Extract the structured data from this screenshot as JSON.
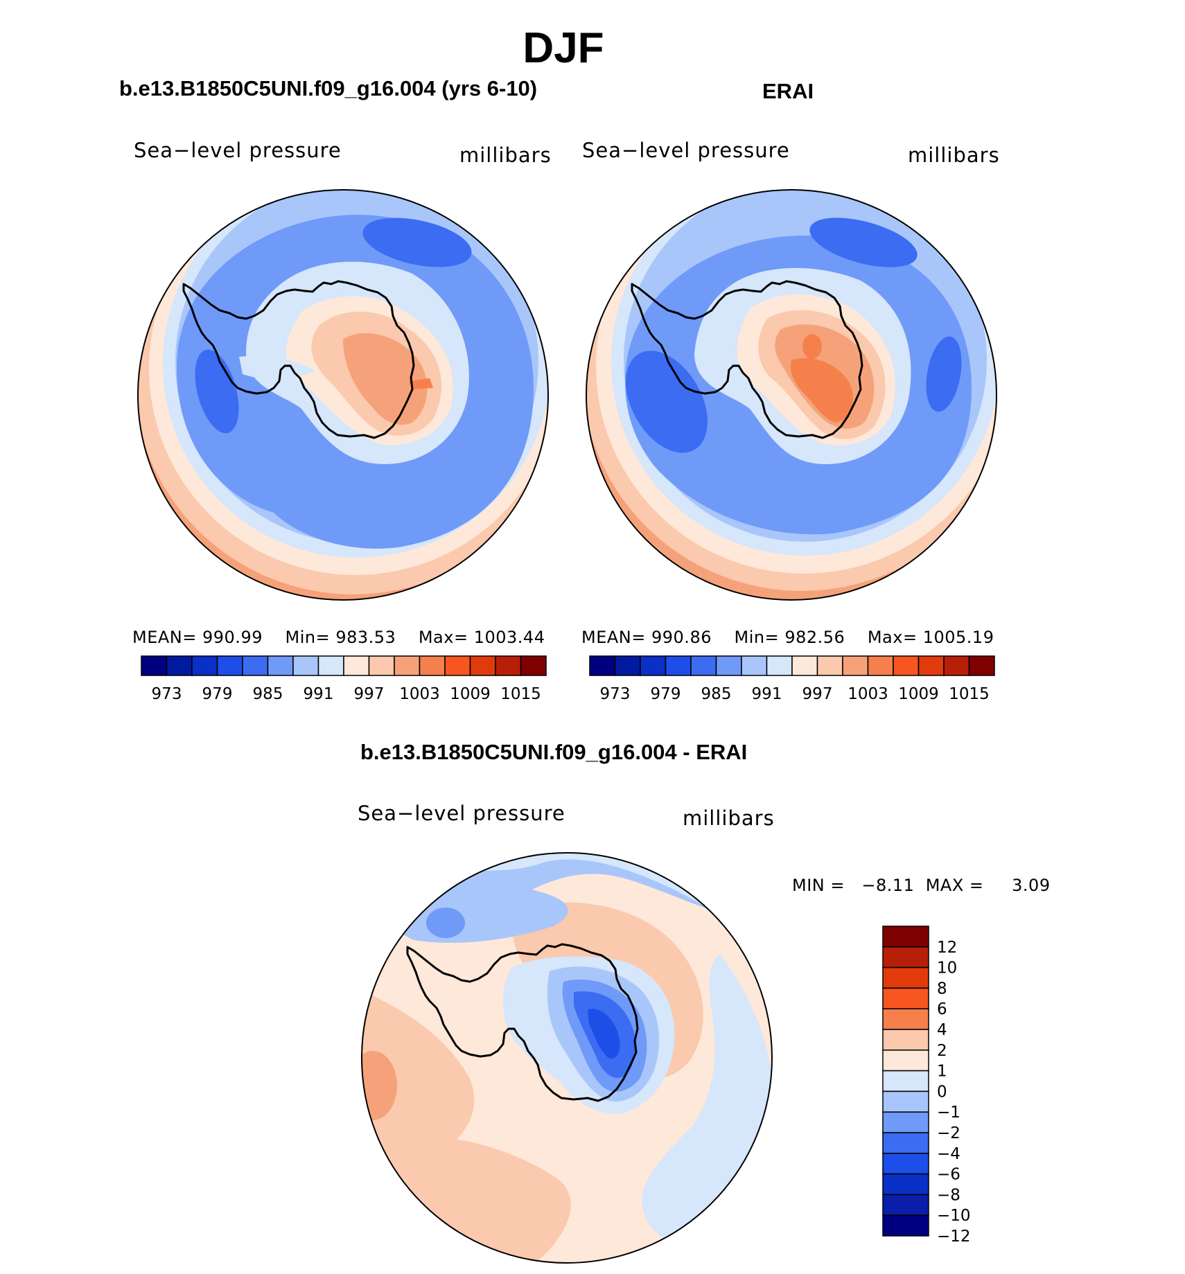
{
  "main_title": "DJF",
  "panels": [
    {
      "title": "b.e13.B1850C5UNI.f09_g16.004 (yrs 6-10)",
      "variable": "Sea−level pressure",
      "units": "millibars",
      "stats": {
        "mean_label": "MEAN=",
        "mean": "990.99",
        "min_label": "Min=",
        "min": "983.53",
        "max_label": "Max=",
        "max": "1003.44"
      }
    },
    {
      "title": "ERAI",
      "variable": "Sea−level pressure",
      "units": "millibars",
      "stats": {
        "mean_label": "MEAN=",
        "mean": "990.86",
        "min_label": "Min=",
        "min": "982.56",
        "max_label": "Max=",
        "max": "1005.19"
      }
    }
  ],
  "diff_panel": {
    "title": "b.e13.B1850C5UNI.f09_g16.004 - ERAI",
    "variable": "Sea−level pressure",
    "units": "millibars",
    "stats": {
      "min_label": "MIN =",
      "min": "−8.11",
      "max_label": "MAX =",
      "max": "3.09"
    }
  },
  "colorbar_abs": {
    "colors": [
      "#000080",
      "#001aa0",
      "#0a30c8",
      "#1d4ee8",
      "#3b6cf2",
      "#6f9af8",
      "#a9c6fb",
      "#d6e6fb",
      "#fde8d9",
      "#fbc9ad",
      "#f5a27a",
      "#f6804c",
      "#f75621",
      "#e13b0c",
      "#b71f08",
      "#7f0000"
    ],
    "labels": [
      "973",
      "979",
      "985",
      "991",
      "997",
      "1003",
      "1009",
      "1015"
    ]
  },
  "colorbar_diff": {
    "colors": [
      "#000080",
      "#0a1eaa",
      "#0a30c8",
      "#1d4ee8",
      "#3b6cf2",
      "#6f9af8",
      "#a9c6fb",
      "#d6e6fb",
      "#fde8d9",
      "#fbc9ad",
      "#f6804c",
      "#f75621",
      "#e13b0c",
      "#b71f08",
      "#7f0000"
    ],
    "labels": [
      "12",
      "10",
      "8",
      "6",
      "4",
      "2",
      "1",
      "0",
      "−1",
      "−2",
      "−4",
      "−6",
      "−8",
      "−10",
      "−12"
    ]
  },
  "chart_data": [
    {
      "type": "filled-contour-map",
      "projection": "south polar stereographic",
      "title": "b.e13.B1850C5UNI.f09_g16.004 (yrs 6-10)",
      "variable": "Sea-level pressure",
      "units": "millibars",
      "mean": 990.99,
      "min": 983.53,
      "max": 1003.44,
      "contour_levels": [
        973,
        976,
        979,
        982,
        985,
        988,
        991,
        994,
        997,
        1000,
        1003,
        1006,
        1009,
        1012,
        1015
      ]
    },
    {
      "type": "filled-contour-map",
      "projection": "south polar stereographic",
      "title": "ERAI",
      "variable": "Sea-level pressure",
      "units": "millibars",
      "mean": 990.86,
      "min": 982.56,
      "max": 1005.19,
      "contour_levels": [
        973,
        976,
        979,
        982,
        985,
        988,
        991,
        994,
        997,
        1000,
        1003,
        1006,
        1009,
        1012,
        1015
      ]
    },
    {
      "type": "filled-contour-map",
      "projection": "south polar stereographic",
      "title": "b.e13.B1850C5UNI.f09_g16.004 - ERAI",
      "variable": "Sea-level pressure",
      "units": "millibars",
      "min": -8.11,
      "max": 3.09,
      "contour_levels": [
        -12,
        -10,
        -8,
        -6,
        -4,
        -2,
        -1,
        0,
        1,
        2,
        4,
        6,
        8,
        10,
        12
      ]
    }
  ]
}
